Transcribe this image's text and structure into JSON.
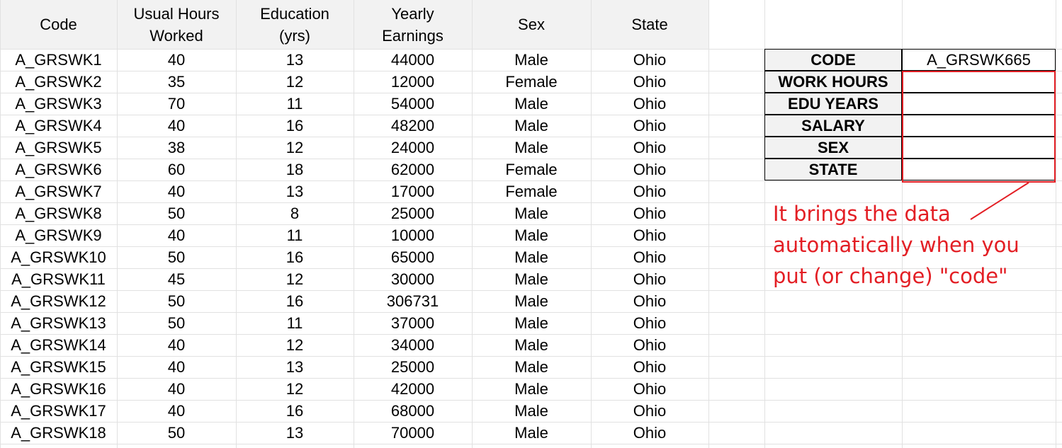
{
  "table": {
    "headers": [
      "Code",
      "Usual Hours\nWorked",
      "Education\n(yrs)",
      "Yearly\nEarnings",
      "Sex",
      "State"
    ],
    "rows": [
      [
        "A_GRSWK1",
        "40",
        "13",
        "44000",
        "Male",
        "Ohio"
      ],
      [
        "A_GRSWK2",
        "35",
        "12",
        "12000",
        "Female",
        "Ohio"
      ],
      [
        "A_GRSWK3",
        "70",
        "11",
        "54000",
        "Male",
        "Ohio"
      ],
      [
        "A_GRSWK4",
        "40",
        "16",
        "48200",
        "Male",
        "Ohio"
      ],
      [
        "A_GRSWK5",
        "38",
        "12",
        "24000",
        "Male",
        "Ohio"
      ],
      [
        "A_GRSWK6",
        "60",
        "18",
        "62000",
        "Female",
        "Ohio"
      ],
      [
        "A_GRSWK7",
        "40",
        "13",
        "17000",
        "Female",
        "Ohio"
      ],
      [
        "A_GRSWK8",
        "50",
        "8",
        "25000",
        "Male",
        "Ohio"
      ],
      [
        "A_GRSWK9",
        "40",
        "11",
        "10000",
        "Male",
        "Ohio"
      ],
      [
        "A_GRSWK10",
        "50",
        "16",
        "65000",
        "Male",
        "Ohio"
      ],
      [
        "A_GRSWK11",
        "45",
        "12",
        "30000",
        "Male",
        "Ohio"
      ],
      [
        "A_GRSWK12",
        "50",
        "16",
        "306731",
        "Male",
        "Ohio"
      ],
      [
        "A_GRSWK13",
        "50",
        "11",
        "37000",
        "Male",
        "Ohio"
      ],
      [
        "A_GRSWK14",
        "40",
        "12",
        "34000",
        "Male",
        "Ohio"
      ],
      [
        "A_GRSWK15",
        "40",
        "13",
        "25000",
        "Male",
        "Ohio"
      ],
      [
        "A_GRSWK16",
        "40",
        "12",
        "42000",
        "Male",
        "Ohio"
      ],
      [
        "A_GRSWK17",
        "40",
        "16",
        "68000",
        "Male",
        "Ohio"
      ],
      [
        "A_GRSWK18",
        "50",
        "13",
        "70000",
        "Male",
        "Ohio"
      ]
    ]
  },
  "lookup": {
    "labels": [
      "CODE",
      "WORK HOURS",
      "EDU YEARS",
      "SALARY",
      "SEX",
      "STATE"
    ],
    "values": [
      "A_GRSWK665",
      "",
      "",
      "",
      "",
      ""
    ]
  },
  "annotation": {
    "lines": [
      "It brings the data",
      "automatically when you",
      "put (or change) \"code\""
    ],
    "color": "#e31e24"
  }
}
